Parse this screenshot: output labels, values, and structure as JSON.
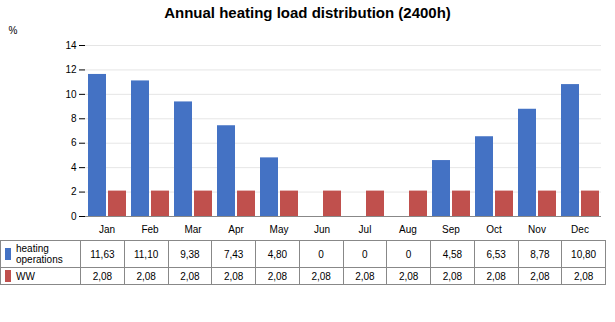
{
  "chart_data": {
    "type": "bar",
    "title": "Annual heating load distribution (2400h)",
    "ylabel": "%",
    "categories": [
      "Jan",
      "Feb",
      "Mar",
      "Apr",
      "May",
      "Jun",
      "Jul",
      "Aug",
      "Sep",
      "Oct",
      "Nov",
      "Dec"
    ],
    "series": [
      {
        "name": "heating\noperations",
        "color": "#4472C4",
        "values": [
          11.63,
          11.1,
          9.38,
          7.43,
          4.8,
          0,
          0,
          0,
          4.58,
          6.53,
          8.78,
          10.8
        ],
        "value_labels": [
          "11,63",
          "11,10",
          "9,38",
          "7,43",
          "4,80",
          "0",
          "0",
          "0",
          "4,58",
          "6,53",
          "8,78",
          "10,80"
        ]
      },
      {
        "name": "WW",
        "color": "#C0504D",
        "values": [
          2.08,
          2.08,
          2.08,
          2.08,
          2.08,
          2.08,
          2.08,
          2.08,
          2.08,
          2.08,
          2.08,
          2.08
        ],
        "value_labels": [
          "2,08",
          "2,08",
          "2,08",
          "2,08",
          "2,08",
          "2,08",
          "2,08",
          "2,08",
          "2,08",
          "2,08",
          "2,08",
          "2,08"
        ]
      }
    ],
    "ylim": [
      0,
      14
    ],
    "yticks": [
      0,
      2,
      4,
      6,
      8,
      10,
      12,
      14
    ],
    "grid": true
  }
}
